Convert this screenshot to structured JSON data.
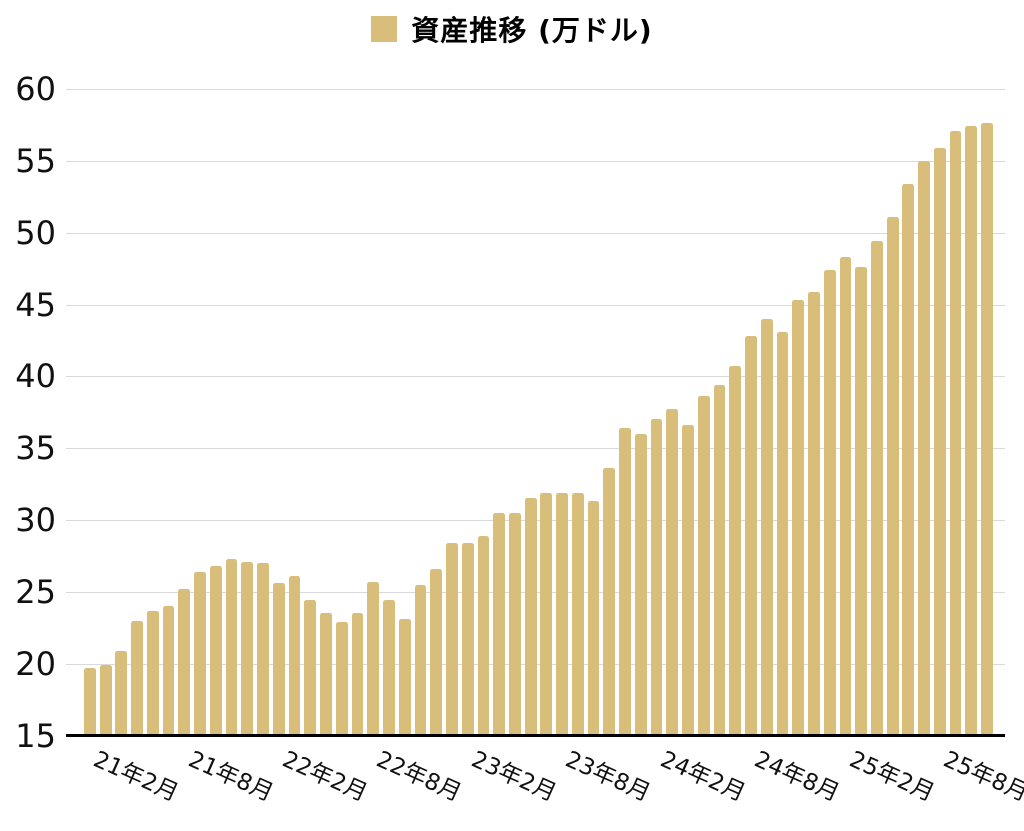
{
  "header": {
    "title": "資産推移 (万ドル)"
  },
  "chart_data": {
    "type": "bar",
    "title": "資産推移 (万ドル)",
    "legend": {
      "position": "top",
      "entries": [
        {
          "label": "資産推移 (万ドル)",
          "marker_color": "#d8bd7b"
        }
      ]
    },
    "categories": [
      "20年11月",
      "20年12月",
      "21年1月",
      "21年2月",
      "21年3月",
      "21年4月",
      "21年5月",
      "21年6月",
      "21年7月",
      "21年8月",
      "21年9月",
      "21年10月",
      "21年11月",
      "21年12月",
      "22年1月",
      "22年2月",
      "22年3月",
      "22年4月",
      "22年5月",
      "22年6月",
      "22年7月",
      "22年8月",
      "22年9月",
      "22年10月",
      "22年11月",
      "22年12月",
      "23年1月",
      "23年2月",
      "23年3月",
      "23年4月",
      "23年5月",
      "23年6月",
      "23年7月",
      "23年8月",
      "23年9月",
      "23年10月",
      "23年11月",
      "23年12月",
      "24年1月",
      "24年2月",
      "24年3月",
      "24年4月",
      "24年5月",
      "24年6月",
      "24年7月",
      "24年8月",
      "24年9月",
      "24年10月",
      "24年11月",
      "24年12月",
      "25年1月",
      "25年2月",
      "25年3月",
      "25年4月",
      "25年5月",
      "25年6月",
      "25年7月",
      "25年8月"
    ],
    "values": [
      19.7,
      19.9,
      20.9,
      23.0,
      23.7,
      24.0,
      25.2,
      26.4,
      26.8,
      27.3,
      27.1,
      27.0,
      25.6,
      26.1,
      24.4,
      23.5,
      22.9,
      23.5,
      25.7,
      24.4,
      23.1,
      25.5,
      26.6,
      28.4,
      28.4,
      28.9,
      30.5,
      30.5,
      31.5,
      31.9,
      31.9,
      31.9,
      31.3,
      33.6,
      36.4,
      36.0,
      37.0,
      37.7,
      36.6,
      38.6,
      39.4,
      40.7,
      42.8,
      44.0,
      43.1,
      45.3,
      45.9,
      47.4,
      48.3,
      47.6,
      49.4,
      51.1,
      53.4,
      55.0,
      55.9,
      57.1,
      57.4,
      57.6
    ],
    "x_tick_indices": [
      3,
      9,
      15,
      21,
      27,
      33,
      39,
      45,
      51,
      57
    ],
    "x_tick_labels": [
      "21年2月",
      "21年8月",
      "22年2月",
      "22年8月",
      "23年2月",
      "23年8月",
      "24年2月",
      "24年8月",
      "25年2月",
      "25年8月"
    ],
    "y_ticks": [
      15,
      20,
      25,
      30,
      35,
      40,
      45,
      50,
      55,
      60
    ],
    "ylim": [
      15,
      60
    ],
    "grid": true,
    "bar_color": "#d8bd7b",
    "grid_color": "#d9d9d9",
    "axis_color": "#000000",
    "text_color": "#111111"
  }
}
